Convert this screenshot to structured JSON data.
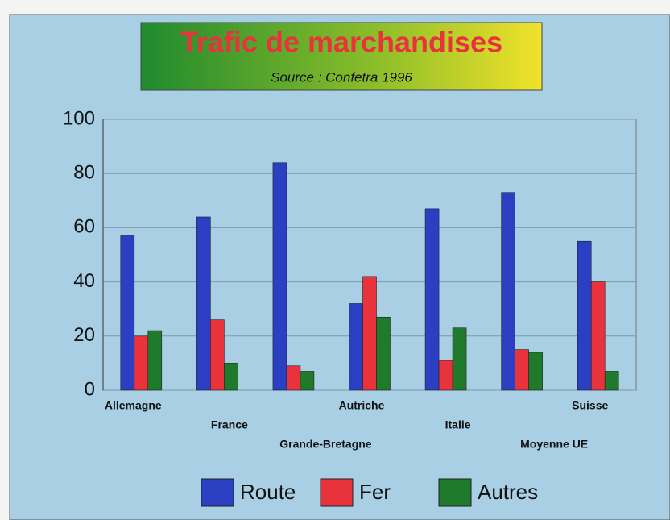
{
  "chart_data": {
    "type": "bar",
    "title": "Trafic de marchandises",
    "subtitle": "Source : Confetra 1996",
    "categories": [
      "Allemagne",
      "France",
      "Grande-Bretagne",
      "Autriche",
      "Italie",
      "Moyenne UE",
      "Suisse"
    ],
    "series": [
      {
        "name": "Route",
        "color": "#2b3fc2",
        "values": [
          57,
          64,
          84,
          32,
          67,
          73,
          55
        ]
      },
      {
        "name": "Fer",
        "color": "#e8323c",
        "values": [
          20,
          26,
          9,
          42,
          11,
          15,
          40
        ]
      },
      {
        "name": "Autres",
        "color": "#1f7a2c",
        "values": [
          22,
          10,
          7,
          27,
          23,
          14,
          7
        ]
      }
    ],
    "ylim": [
      0,
      100
    ],
    "yticks": [
      0,
      20,
      40,
      60,
      80,
      100
    ],
    "grid": true,
    "legend": "bottom"
  }
}
